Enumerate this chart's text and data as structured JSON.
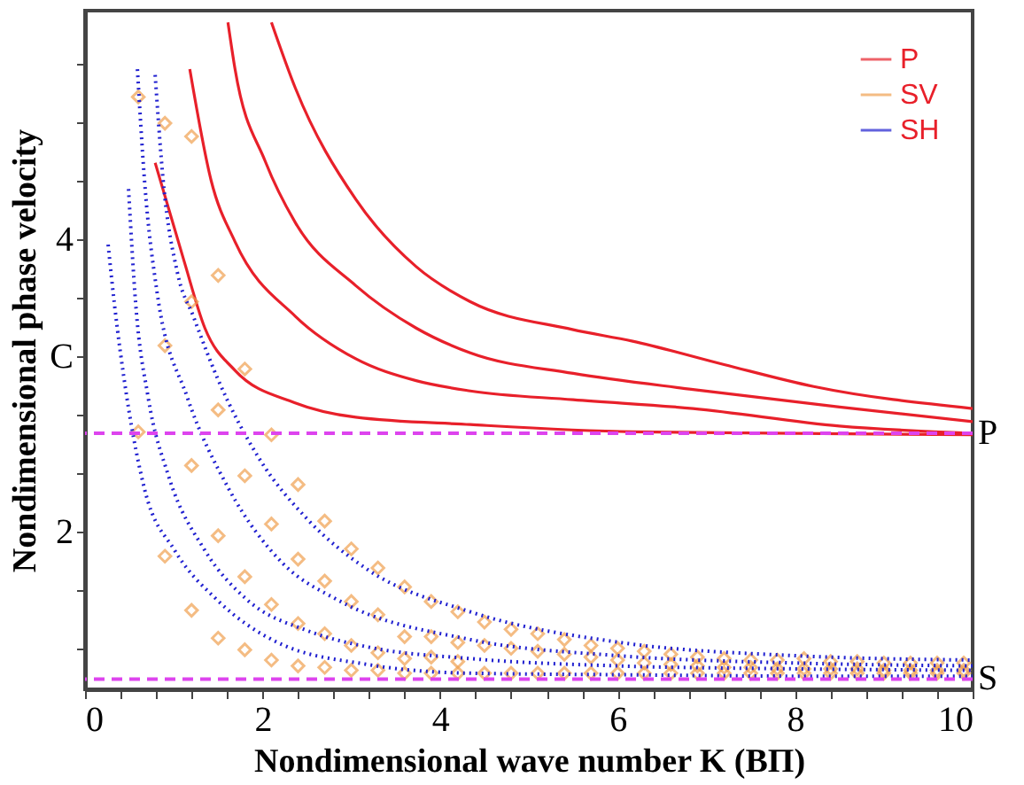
{
  "chart_data": {
    "type": "line",
    "xlabel": "Nondimensional wave number K (BΠ)",
    "ylabel": "Nondimensional phase velocity",
    "xlim": [
      0,
      10
    ],
    "ylim": [
      0.92,
      5.56
    ],
    "xticks": [
      0,
      {
        "value": 0.4,
        "label": null
      },
      {
        "value": 0.8,
        "label": null
      },
      {
        "value": 1.2,
        "label": null
      },
      {
        "value": 1.6,
        "label": null
      },
      2,
      {
        "value": 2.4,
        "label": null
      },
      {
        "value": 2.8,
        "label": null
      },
      {
        "value": 3.2,
        "label": null
      },
      {
        "value": 3.6,
        "label": null
      },
      4,
      {
        "value": 4.4,
        "label": null
      },
      {
        "value": 4.8,
        "label": null
      },
      {
        "value": 5.2,
        "label": null
      },
      {
        "value": 5.6,
        "label": null
      },
      6,
      {
        "value": 6.4,
        "label": null
      },
      {
        "value": 6.8,
        "label": null
      },
      {
        "value": 7.2,
        "label": null
      },
      {
        "value": 7.6,
        "label": null
      },
      8,
      {
        "value": 8.4,
        "label": null
      },
      {
        "value": 8.8,
        "label": null
      },
      {
        "value": 9.2,
        "label": null
      },
      {
        "value": 9.6,
        "label": null
      },
      10
    ],
    "yticks": [
      {
        "value": 1.2,
        "label": null
      },
      {
        "value": 1.6,
        "label": null
      },
      2,
      {
        "value": 2.4,
        "label": null
      },
      {
        "value": 2.8,
        "label": null
      },
      {
        "value": 3.2,
        "label": "C"
      },
      {
        "value": 3.6,
        "label": null
      },
      4,
      {
        "value": 4.4,
        "label": null
      },
      {
        "value": 4.8,
        "label": null
      },
      {
        "value": 5.2,
        "label": null
      }
    ],
    "grid": false,
    "legend": "top right",
    "series": [
      {
        "name": "P",
        "color": "#e8202a",
        "line_style": "solid",
        "x": [
          0.79,
          1.11,
          1.35,
          1.69,
          2.36,
          3.05,
          4.34,
          6.17,
          8.0,
          10
        ],
        "values": [
          4.52,
          3.86,
          3.39,
          3.1,
          2.88,
          2.78,
          2.73,
          2.68,
          2.67,
          2.66
        ]
      },
      {
        "color": "#e8202a",
        "line_style": "solid",
        "x": [
          1.18,
          1.42,
          1.69,
          2.37,
          3.05,
          3.73,
          4.34,
          5.5,
          6.85,
          8.5,
          10
        ],
        "values": [
          5.16,
          4.4,
          3.98,
          3.47,
          3.18,
          3.03,
          2.96,
          2.9,
          2.84,
          2.72,
          2.67
        ]
      },
      {
        "color": "#e8202a",
        "line_style": "solid",
        "x": [
          1.61,
          1.69,
          2.03,
          2.37,
          3.05,
          3.73,
          4.34,
          5.5,
          6.85,
          8.5,
          10
        ],
        "values": [
          5.48,
          5.16,
          4.53,
          4.11,
          3.68,
          3.39,
          3.22,
          3.08,
          2.97,
          2.85,
          2.75
        ]
      },
      {
        "color": "#e8202a",
        "line_style": "solid",
        "x": [
          2.1,
          2.37,
          3.05,
          3.73,
          4.34,
          5.49,
          6.17,
          7.2,
          8.21,
          10
        ],
        "values": [
          5.48,
          5.03,
          4.27,
          3.81,
          3.57,
          3.38,
          3.3,
          3.14,
          2.99,
          2.84
        ]
      },
      {
        "name": "SV",
        "type": "scatter",
        "color": "#f0a050",
        "marker": "diamond",
        "x": [
          0.6,
          0.9,
          1.2,
          1.5,
          1.2,
          0.9,
          1.8,
          1.5,
          0.6,
          2.1,
          1.2,
          1.8,
          2.4,
          2.1,
          1.5,
          2.7,
          0.9,
          2.4,
          1.8,
          3.0,
          3.3,
          2.7,
          2.1,
          3.6,
          1.5,
          1.2,
          2.4,
          3.0,
          3.9,
          3.3,
          2.7,
          1.8,
          2.1,
          2.4,
          2.7,
          3.0,
          3.3,
          3.6,
          3.6,
          3.9,
          3.9,
          4.2,
          4.2,
          4.2,
          4.2,
          3.0,
          3.3,
          3.6,
          3.9,
          4.5,
          4.8,
          5.1,
          5.4,
          5.7,
          6.0,
          6.3,
          6.6,
          6.9,
          7.2,
          7.5,
          7.8,
          8.1,
          8.4,
          8.7,
          9.0,
          9.3,
          9.6,
          9.9,
          4.5,
          4.8,
          5.1,
          5.4,
          5.7,
          6.0,
          6.3,
          6.6,
          6.9,
          7.2,
          7.5,
          7.8,
          8.1,
          8.4,
          8.7,
          9.0,
          9.3,
          9.6,
          9.9,
          4.5,
          4.8,
          5.1,
          5.4,
          5.7,
          6.0,
          6.3,
          6.6,
          6.9,
          7.2,
          7.5,
          7.8,
          8.1,
          8.4,
          8.7,
          9.0,
          9.3,
          9.6,
          9.9
        ],
        "values": [
          4.97,
          4.79,
          4.7,
          3.75,
          3.57,
          3.27,
          3.11,
          2.83,
          2.68,
          2.66,
          2.45,
          2.38,
          2.32,
          2.05,
          1.97,
          2.07,
          1.83,
          1.81,
          1.69,
          1.88,
          1.75,
          1.66,
          1.5,
          1.62,
          1.27,
          1.46,
          1.37,
          1.52,
          1.52,
          1.43,
          1.3,
          1.19,
          1.12,
          1.08,
          1.07,
          1.05,
          1.05,
          1.13,
          1.03,
          1.14,
          1.03,
          1.45,
          1.24,
          1.11,
          1.03,
          1.22,
          1.17,
          1.28,
          1.28,
          1.38,
          1.33,
          1.3,
          1.26,
          1.22,
          1.2,
          1.18,
          1.16,
          1.14,
          1.13,
          1.12,
          1.12,
          1.13,
          1.11,
          1.11,
          1.1,
          1.1,
          1.1,
          1.1,
          1.22,
          1.2,
          1.18,
          1.16,
          1.14,
          1.12,
          1.1,
          1.09,
          1.08,
          1.07,
          1.07,
          1.06,
          1.06,
          1.06,
          1.06,
          1.05,
          1.05,
          1.05,
          1.05,
          1.03,
          1.03,
          1.03,
          1.03,
          1.03,
          1.03,
          1.03,
          1.03,
          1.03,
          1.03,
          1.03,
          1.03,
          1.03,
          1.03,
          1.03,
          1.03,
          1.03,
          1.03,
          1.03
        ]
      },
      {
        "name": "SH",
        "color": "#2020d0",
        "line_style": "dotted",
        "x": [
          0.26,
          0.33,
          0.47,
          0.67,
          1.01,
          1.49,
          2.17,
          3.18,
          4.34,
          6.0,
          8.0,
          10
        ],
        "values": [
          3.96,
          3.56,
          2.92,
          2.29,
          1.87,
          1.53,
          1.24,
          1.09,
          1.03,
          1.02,
          1.01,
          1.01
        ]
      },
      {
        "color": "#2020d0",
        "line_style": "dotted",
        "x": [
          0.49,
          0.57,
          0.71,
          0.94,
          1.35,
          1.83,
          2.51,
          3.18,
          4.34,
          6.0,
          8.0,
          10
        ],
        "values": [
          4.34,
          3.56,
          2.92,
          2.38,
          1.87,
          1.53,
          1.32,
          1.21,
          1.13,
          1.08,
          1.06,
          1.05
        ]
      },
      {
        "color": "#2020d0",
        "line_style": "dotted",
        "x": [
          0.59,
          0.67,
          0.81,
          1.15,
          1.62,
          2.23,
          2.85,
          4.34,
          6.0,
          8.0,
          10
        ],
        "values": [
          5.16,
          4.4,
          3.64,
          2.92,
          2.29,
          1.78,
          1.53,
          1.26,
          1.15,
          1.1,
          1.08
        ]
      },
      {
        "color": "#2020d0",
        "line_style": "dotted",
        "x": [
          0.79,
          0.88,
          1.04,
          1.22,
          1.49,
          1.96,
          2.51,
          3.18,
          4.34,
          6.03,
          8.0,
          10
        ],
        "values": [
          5.12,
          4.4,
          3.77,
          3.47,
          3.05,
          2.5,
          2.08,
          1.74,
          1.45,
          1.24,
          1.15,
          1.12
        ]
      }
    ],
    "ref_lines": [
      {
        "axis": "y",
        "value": 2.67,
        "color": "#dd44ee",
        "line_style": "dashed"
      },
      {
        "axis": "y",
        "value": 0.99,
        "color": "#dd44ee",
        "line_style": "dashed"
      }
    ],
    "annotations": [
      {
        "text": "P",
        "x": 10,
        "y": 2.67
      },
      {
        "text": "S",
        "x": 10,
        "y": 0.99
      }
    ]
  }
}
